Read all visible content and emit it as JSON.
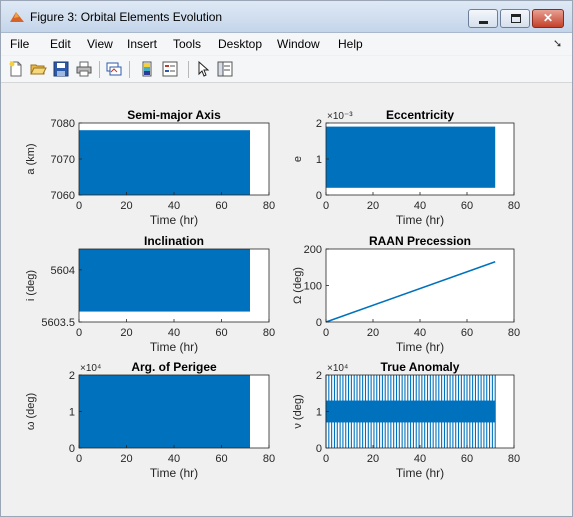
{
  "window": {
    "title": "Figure 3: Orbital Elements Evolution"
  },
  "menu": [
    "File",
    "Edit",
    "View",
    "Insert",
    "Tools",
    "Desktop",
    "Window",
    "Help"
  ],
  "toolbar": [
    "new-figure-icon",
    "open-file-icon",
    "save-icon",
    "print-icon",
    "link-plot-icon",
    "colorbar-icon",
    "legend-icon",
    "pointer-icon",
    "property-inspector-icon"
  ],
  "colors": {
    "series": "#0072bd",
    "axes": "#262626",
    "titlebar": "#c4d5ea"
  },
  "chart_data": [
    {
      "type": "line",
      "title": "Semi-major Axis",
      "xlabel": "Time (hr)",
      "ylabel": "a (km)",
      "xlim": [
        0,
        80
      ],
      "ylim": [
        7060,
        7080
      ],
      "xticks": [
        "0",
        "20",
        "40",
        "60",
        "80"
      ],
      "yticks": [
        "7060",
        "7070",
        "7080"
      ],
      "exponent": "",
      "series": [
        {
          "x_start": 0,
          "x_end": 72,
          "band_min": 7060,
          "band_max": 7078
        }
      ]
    },
    {
      "type": "line",
      "title": "Eccentricity",
      "xlabel": "Time (hr)",
      "ylabel": "e",
      "xlim": [
        0,
        80
      ],
      "ylim": [
        0,
        2
      ],
      "xticks": [
        "0",
        "20",
        "40",
        "60",
        "80"
      ],
      "yticks": [
        "0",
        "1",
        "2"
      ],
      "exponent": "×10⁻³",
      "series": [
        {
          "x_start": 0,
          "x_end": 72,
          "band_min": 0.2,
          "band_max": 1.9
        }
      ]
    },
    {
      "type": "line",
      "title": "Inclination",
      "xlabel": "Time (hr)",
      "ylabel": "i (deg)",
      "xlim": [
        0,
        80
      ],
      "ylim": [
        5603.5,
        5604.2
      ],
      "xticks": [
        "0",
        "20",
        "40",
        "60",
        "80"
      ],
      "yticks": [
        "5603.5",
        "5604"
      ],
      "exponent": "",
      "series": [
        {
          "x_start": 0,
          "x_end": 72,
          "band_min": 5603.6,
          "band_max": 5604.2
        }
      ]
    },
    {
      "type": "line",
      "title": "RAAN Precession",
      "xlabel": "Time (hr)",
      "ylabel": "Ω (deg)",
      "xlim": [
        0,
        80
      ],
      "ylim": [
        0,
        200
      ],
      "xticks": [
        "0",
        "20",
        "40",
        "60",
        "80"
      ],
      "yticks": [
        "0",
        "100",
        "200"
      ],
      "exponent": "",
      "series": [
        {
          "x": [
            0,
            72
          ],
          "y": [
            0,
            165
          ]
        }
      ]
    },
    {
      "type": "line",
      "title": "Arg. of Perigee",
      "xlabel": "Time (hr)",
      "ylabel": "ω (deg)",
      "xlim": [
        0,
        80
      ],
      "ylim": [
        0,
        20000
      ],
      "xticks": [
        "0",
        "20",
        "40",
        "60",
        "80"
      ],
      "yticks": [
        "0",
        "1",
        "2"
      ],
      "exponent": "×10⁴",
      "series": [
        {
          "x_start": 0,
          "x_end": 72,
          "band_min": 0,
          "band_max": 20000
        }
      ]
    },
    {
      "type": "line",
      "title": "True Anomaly",
      "xlabel": "Time (hr)",
      "ylabel": "ν (deg)",
      "xlim": [
        0,
        80
      ],
      "ylim": [
        0,
        20000
      ],
      "xticks": [
        "0",
        "20",
        "40",
        "60",
        "80"
      ],
      "yticks": [
        "0",
        "1",
        "2"
      ],
      "exponent": "×10⁴",
      "series": [
        {
          "x_start": 0,
          "x_end": 72,
          "band_min": 0,
          "band_max": 20000,
          "core_min": 7000,
          "core_max": 13000
        }
      ]
    }
  ]
}
